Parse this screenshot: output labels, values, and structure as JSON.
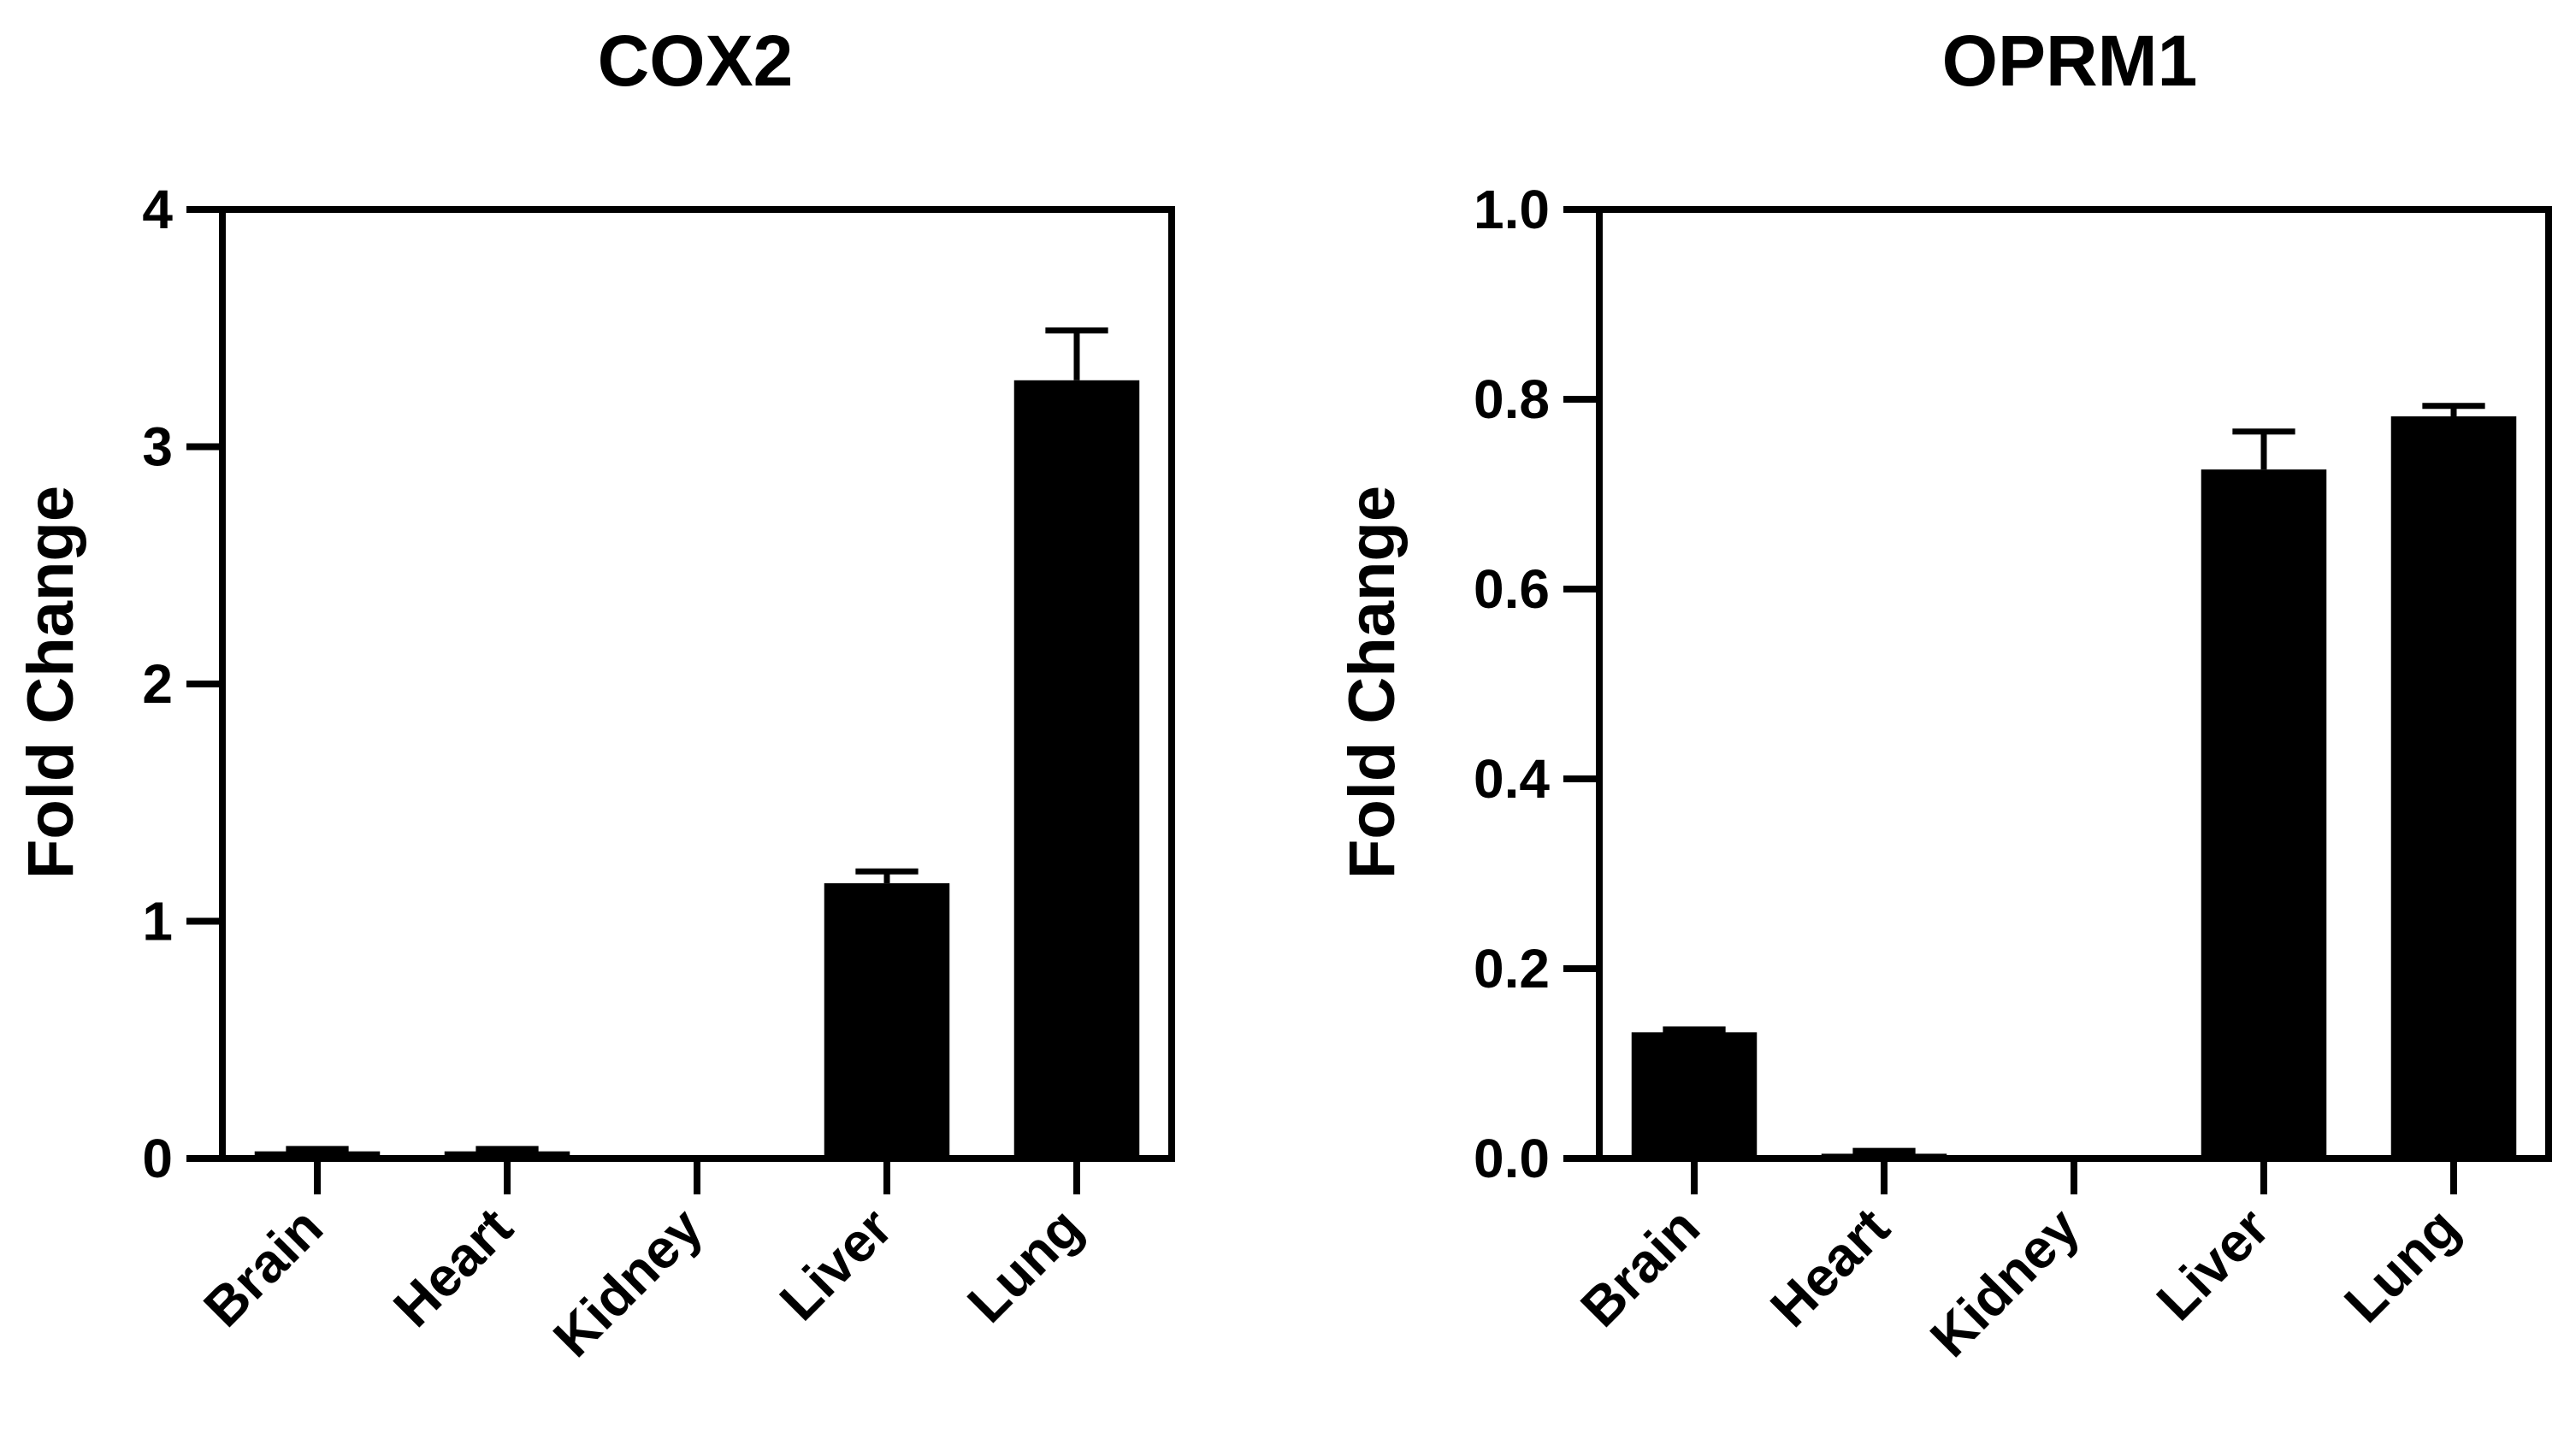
{
  "chart_data": [
    {
      "type": "bar",
      "title": "COX2",
      "ylabel": "Fold  Change",
      "xlabel": "",
      "categories": [
        "Brain",
        "Heart",
        "Kidney",
        "Liver",
        "Lung"
      ],
      "values": [
        0.03,
        0.03,
        0.0,
        1.16,
        3.28
      ],
      "errors": [
        0.01,
        0.01,
        0.0,
        0.05,
        0.21
      ],
      "ylim": [
        0,
        4
      ],
      "yticks": [
        0,
        1,
        2,
        3,
        4
      ],
      "ytick_labels": [
        "0",
        "1",
        "2",
        "3",
        "4"
      ],
      "bar_color": "#000000",
      "grid": false
    },
    {
      "type": "bar",
      "title": "OPRM1",
      "ylabel": "Fold  Change",
      "xlabel": "",
      "categories": [
        "Brain",
        "Heart",
        "Kidney",
        "Liver",
        "Lung"
      ],
      "values": [
        0.133,
        0.005,
        0.0,
        0.726,
        0.782
      ],
      "errors": [
        0.003,
        0.003,
        0.0,
        0.04,
        0.011
      ],
      "ylim": [
        0,
        1.0
      ],
      "yticks": [
        0,
        0.2,
        0.4,
        0.6,
        0.8,
        1.0
      ],
      "ytick_labels": [
        "0.0",
        "0.2",
        "0.4",
        "0.6",
        "0.8",
        "1.0"
      ],
      "bar_color": "#000000",
      "grid": false
    }
  ]
}
